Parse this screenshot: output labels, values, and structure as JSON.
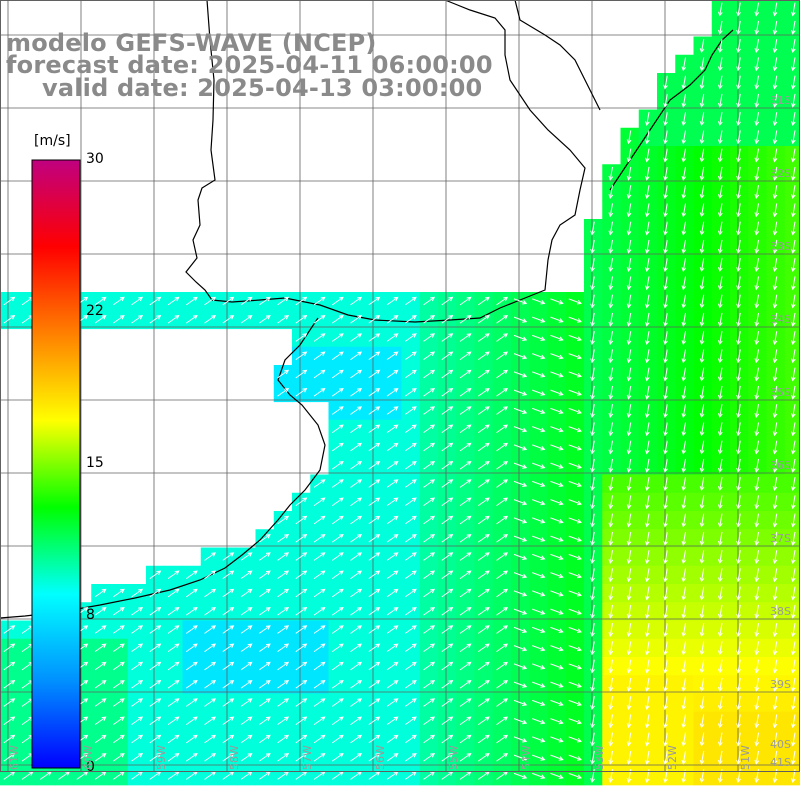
{
  "title": {
    "line1": "modelo GEFS-WAVE (NCEP)",
    "line2": "forecast date: 2025-04-11 06:00:00",
    "line3": "valid date: 2025-04-13 03:00:00"
  },
  "colorbar": {
    "unit": "[m/s]",
    "ticks": [
      "30",
      "22",
      "15",
      "8",
      "0"
    ],
    "tick_values": [
      30,
      22,
      15,
      8,
      0
    ],
    "min": 0,
    "max": 30,
    "stops": [
      "#0000ff",
      "#0090ff",
      "#00ffff",
      "#00ff00",
      "#ffff00",
      "#ff8000",
      "#ff0000",
      "#c00080"
    ]
  },
  "axes": {
    "lat_labels": [
      "31S",
      "32S",
      "33S",
      "34S",
      "35S",
      "36S",
      "37S",
      "38S",
      "39S",
      "40S",
      "41S"
    ],
    "lon_labels": [
      "61W",
      "60W",
      "59W",
      "58W",
      "57W",
      "56W",
      "55W",
      "54W",
      "53W",
      "52W",
      "51W"
    ]
  },
  "colors": {
    "title": "#8a8a8a",
    "land": "#ffffff",
    "grid": "#606060",
    "coast": "#000000",
    "arrows": "#ffffff"
  }
}
